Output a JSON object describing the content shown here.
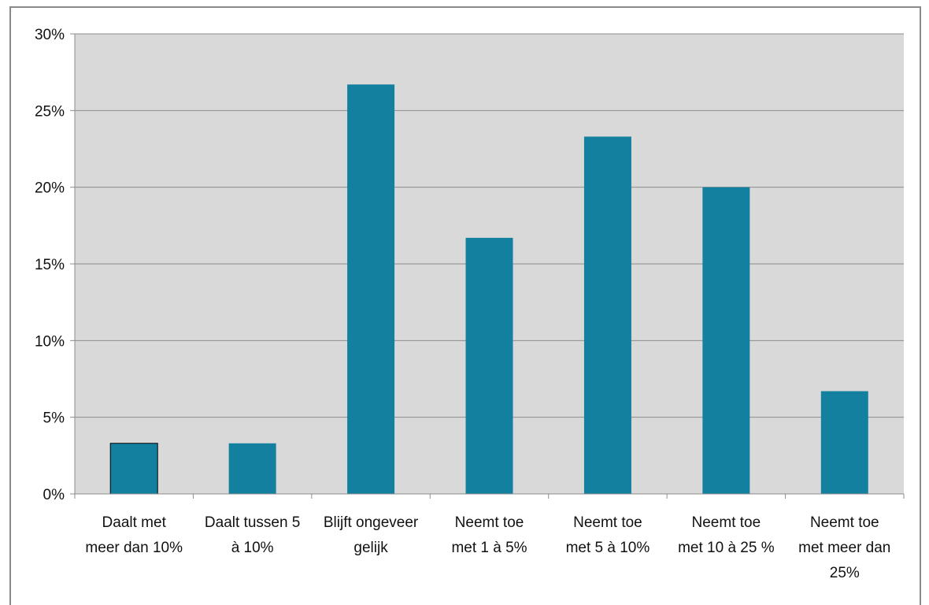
{
  "chart_data": {
    "type": "bar",
    "title": "",
    "xlabel": "",
    "ylabel": "",
    "categories": [
      [
        "Daalt met",
        "meer dan 10%"
      ],
      [
        "Daalt tussen 5",
        "à 10%"
      ],
      [
        "Blijft ongeveer",
        "gelijk"
      ],
      [
        "Neemt toe",
        "met 1 à 5%"
      ],
      [
        "Neemt toe",
        "met 5 à 10%"
      ],
      [
        "Neemt toe",
        "met 10 à 25 %"
      ],
      [
        "Neemt toe",
        "met meer dan",
        "25%"
      ]
    ],
    "values": [
      3.3,
      3.3,
      26.7,
      16.7,
      23.3,
      20.0,
      6.7
    ],
    "ylim": [
      0,
      30
    ],
    "yticks": [
      0,
      5,
      10,
      15,
      20,
      25,
      30
    ],
    "ytick_labels": [
      "0%",
      "5%",
      "10%",
      "15%",
      "20%",
      "25%",
      "30%"
    ],
    "grid": true,
    "legend": "none",
    "colors": {
      "bar": "#13809f",
      "plot_bg": "#d9d9d9",
      "grid": "#8c8c8c",
      "axis": "#8c8c8c"
    }
  }
}
